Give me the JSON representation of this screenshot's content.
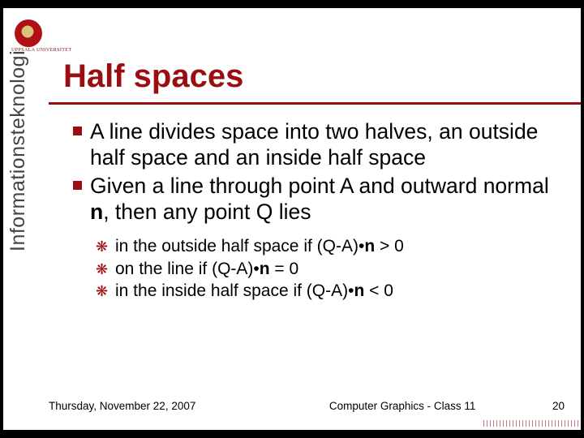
{
  "logo_caption": "UPPSALA UNIVERSITET",
  "title": "Half spaces",
  "sidebar": "Informationsteknologi",
  "bullets_l1": [
    "A line divides space into two halves, an outside half space and an inside half space",
    "Given a line through point A and outward normal |n|, then any point Q lies"
  ],
  "bullets_l2": [
    "in the outside half space if (Q-A)•|n| > 0",
    "on the line if (Q-A)•|n| = 0",
    "in the inside half space if (Q-A)•|n| < 0"
  ],
  "footer": {
    "date": "Thursday, November 22, 2007",
    "center": "Computer Graphics - Class 11",
    "page": "20"
  },
  "colors": {
    "accent": "#9a0e12",
    "text": "#000000",
    "bg": "#ffffff"
  }
}
